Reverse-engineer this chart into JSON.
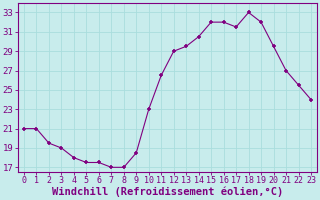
{
  "x": [
    0,
    1,
    2,
    3,
    4,
    5,
    6,
    7,
    8,
    9,
    10,
    11,
    12,
    13,
    14,
    15,
    16,
    17,
    18,
    19,
    20,
    21,
    22,
    23
  ],
  "y": [
    21.0,
    21.0,
    19.5,
    19.0,
    18.0,
    17.5,
    17.5,
    17.0,
    17.0,
    18.5,
    23.0,
    26.5,
    29.0,
    29.5,
    30.5,
    32.0,
    32.0,
    31.5,
    33.0,
    32.0,
    29.5,
    27.0,
    25.5,
    24.0
  ],
  "line_color": "#800080",
  "marker_color": "#800080",
  "bg_color": "#c8ecec",
  "grid_color": "#aadddd",
  "xlabel": "Windchill (Refroidissement éolien,°C)",
  "ylabel_ticks": [
    17,
    19,
    21,
    23,
    25,
    27,
    29,
    31,
    33
  ],
  "xlim": [
    -0.5,
    23.5
  ],
  "ylim": [
    16.5,
    34.0
  ],
  "xtick_labels": [
    "0",
    "1",
    "2",
    "3",
    "4",
    "5",
    "6",
    "7",
    "8",
    "9",
    "10",
    "11",
    "12",
    "13",
    "14",
    "15",
    "16",
    "17",
    "18",
    "19",
    "20",
    "21",
    "22",
    "23"
  ],
  "tick_fontsize": 6.5,
  "xlabel_fontsize": 7.5
}
